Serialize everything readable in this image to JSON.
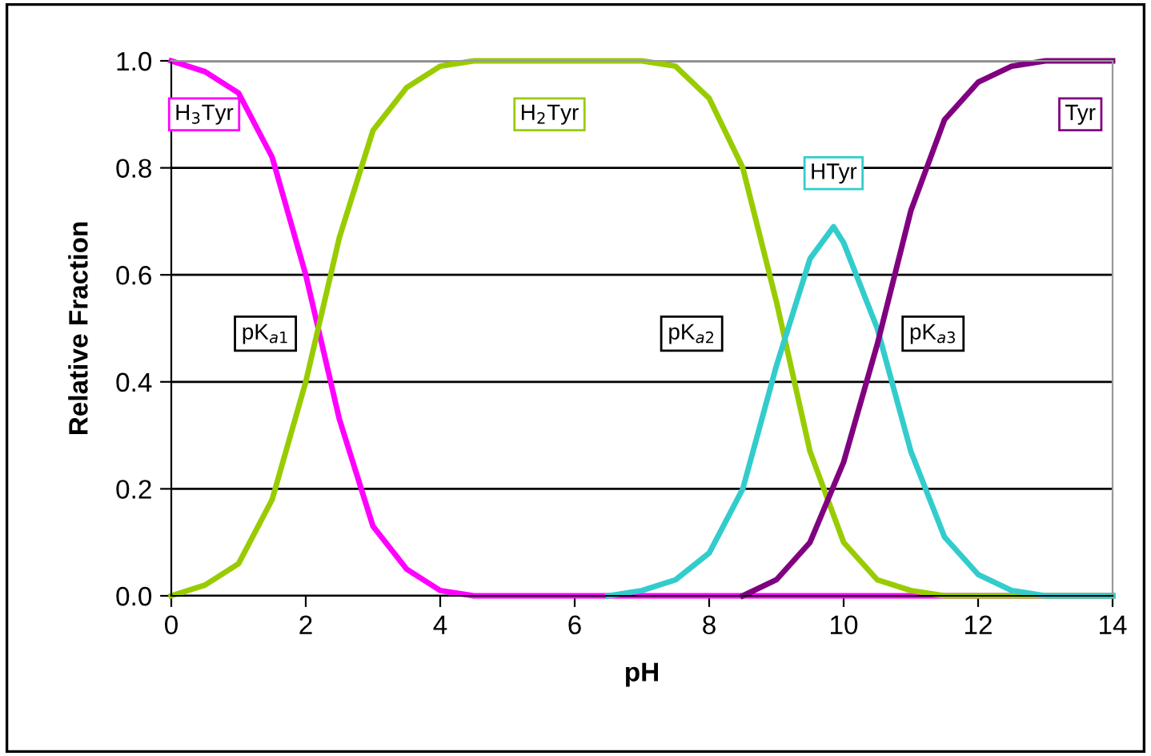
{
  "chart_data": {
    "type": "line",
    "xlabel": "pH",
    "ylabel": "Relative Fraction",
    "xlim": [
      0,
      14
    ],
    "ylim": [
      0,
      1
    ],
    "xticks": [
      0,
      2,
      4,
      6,
      8,
      10,
      12,
      14
    ],
    "yticks": [
      {
        "value": 0,
        "label": "0.0"
      },
      {
        "value": 0.2,
        "label": "0.2"
      },
      {
        "value": 0.4,
        "label": "0.4"
      },
      {
        "value": 0.6,
        "label": "0.6"
      },
      {
        "value": 0.8,
        "label": "0.8"
      },
      {
        "value": 1,
        "label": "1.0"
      }
    ],
    "grid": "y",
    "legend": false,
    "marker": "none",
    "line_style": "solid",
    "series": [
      {
        "name": "H$_{3}$Tyr",
        "color": "#ff00ff",
        "x": [
          0,
          0.5,
          1,
          1.5,
          2,
          2.5,
          3,
          3.5,
          4,
          4.5,
          5,
          6,
          8,
          10,
          12,
          14
        ],
        "values": [
          1.0,
          0.98,
          0.94,
          0.82,
          0.6,
          0.33,
          0.13,
          0.05,
          0.01,
          0,
          0,
          0,
          0,
          0,
          0,
          0
        ]
      },
      {
        "name": "H$_{2}$Tyr",
        "color": "#99cc00",
        "x": [
          0,
          0.5,
          1,
          1.5,
          2,
          2.5,
          3,
          3.5,
          4,
          4.5,
          5,
          6,
          7,
          7.5,
          8,
          8.5,
          9,
          9.5,
          10,
          10.5,
          11,
          11.5,
          12,
          14
        ],
        "values": [
          0,
          0.02,
          0.06,
          0.18,
          0.4,
          0.67,
          0.87,
          0.95,
          0.99,
          1.0,
          1.0,
          1.0,
          1.0,
          0.99,
          0.93,
          0.8,
          0.55,
          0.27,
          0.1,
          0.03,
          0.01,
          0,
          0,
          0
        ]
      },
      {
        "name": "HTyr",
        "color": "#33cccc",
        "x": [
          6.5,
          7,
          7.5,
          8,
          8.5,
          9,
          9.5,
          9.85,
          10,
          10.5,
          11,
          11.5,
          12,
          12.5,
          13,
          14
        ],
        "values": [
          0,
          0.01,
          0.03,
          0.08,
          0.2,
          0.43,
          0.63,
          0.69,
          0.66,
          0.5,
          0.27,
          0.11,
          0.04,
          0.01,
          0,
          0
        ]
      },
      {
        "name": "Tyr",
        "color": "#800080",
        "x": [
          8.5,
          9,
          9.5,
          10,
          10.5,
          11,
          11.5,
          12,
          12.5,
          13,
          13.5,
          14
        ],
        "values": [
          0,
          0.03,
          0.1,
          0.25,
          0.47,
          0.72,
          0.89,
          0.96,
          0.99,
          1.0,
          1.0,
          1.0
        ]
      }
    ],
    "annotations": [
      {
        "text": "pK$_{a1}$",
        "x": 1.4,
        "y": 0.49
      },
      {
        "text": "pK$_{a2}$",
        "x": 7.74,
        "y": 0.49
      },
      {
        "text": "pK$_{a3}$",
        "x": 11.33,
        "y": 0.49
      }
    ]
  }
}
